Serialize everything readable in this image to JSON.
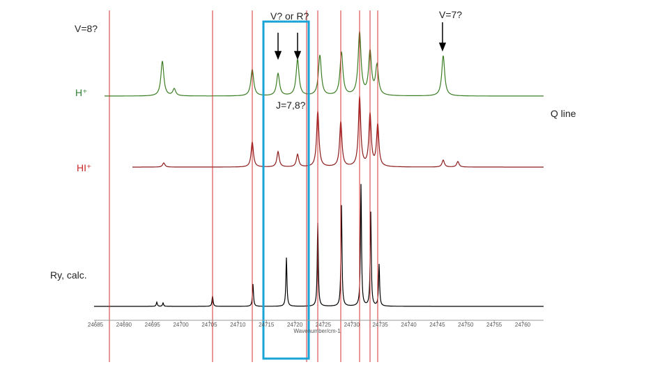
{
  "labels": {
    "v8": "V=8?",
    "v_or_r": "V? or R?",
    "v7": "V=7?",
    "h_plus": "H⁺",
    "j78": "J=7,8?",
    "q_line": "Q line",
    "hi_plus": "HI⁺",
    "ry_calc": "Ry, calc."
  },
  "x_axis": {
    "title": "Wavenumber/cm-1",
    "ticks": [
      "24685",
      "24690",
      "24695",
      "24700",
      "24705",
      "24710",
      "24715",
      "24720",
      "24725",
      "24730",
      "24735",
      "24740",
      "24745",
      "24750",
      "24755",
      "24760"
    ]
  }
}
